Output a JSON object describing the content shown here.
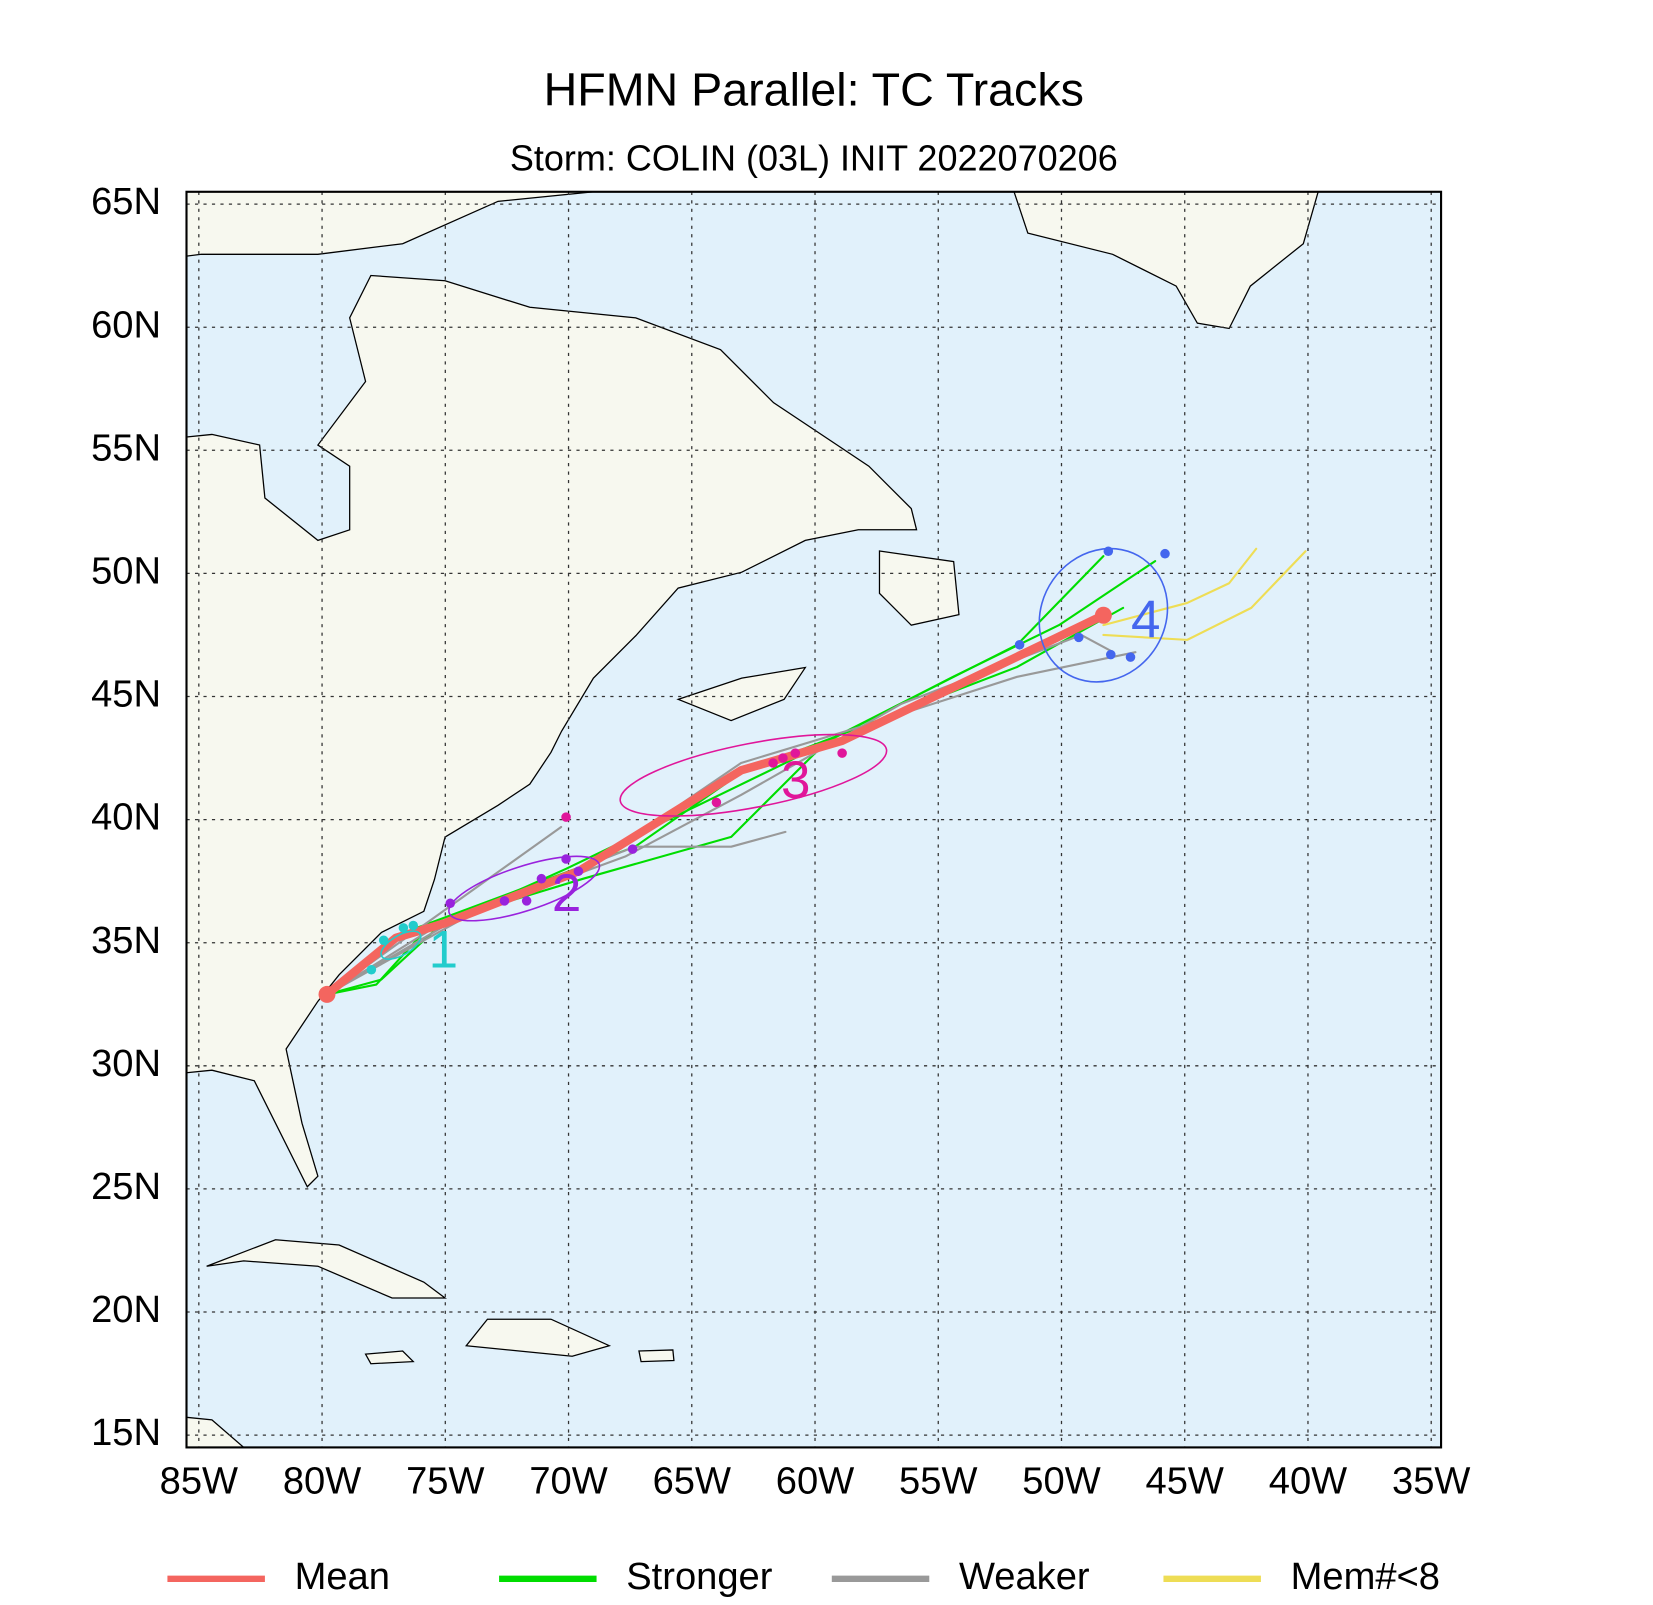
{
  "chart_data": {
    "type": "map",
    "title": "HFMN Parallel: TC Tracks",
    "subtitle": "Storm: COLIN (03L) INIT 2022070206",
    "xlim": [
      -85.5,
      -34.6
    ],
    "ylim": [
      14.5,
      65.5
    ],
    "xticks": [
      {
        "value": -85,
        "label": "85W"
      },
      {
        "value": -80,
        "label": "80W"
      },
      {
        "value": -75,
        "label": "75W"
      },
      {
        "value": -70,
        "label": "70W"
      },
      {
        "value": -65,
        "label": "65W"
      },
      {
        "value": -60,
        "label": "60W"
      },
      {
        "value": -55,
        "label": "55W"
      },
      {
        "value": -50,
        "label": "50W"
      },
      {
        "value": -45,
        "label": "45W"
      },
      {
        "value": -40,
        "label": "40W"
      },
      {
        "value": -35,
        "label": "35W"
      }
    ],
    "yticks": [
      {
        "value": 15,
        "label": "15N"
      },
      {
        "value": 20,
        "label": "20N"
      },
      {
        "value": 25,
        "label": "25N"
      },
      {
        "value": 30,
        "label": "30N"
      },
      {
        "value": 35,
        "label": "35N"
      },
      {
        "value": 40,
        "label": "40N"
      },
      {
        "value": 45,
        "label": "45N"
      },
      {
        "value": 50,
        "label": "50N"
      },
      {
        "value": 55,
        "label": "55N"
      },
      {
        "value": 60,
        "label": "60N"
      },
      {
        "value": 65,
        "label": "65N"
      }
    ],
    "grid": true,
    "series": [
      {
        "name": "Stronger",
        "color": "#00dd00",
        "tracks": [
          {
            "lon": [
              -79.8,
              -77.8,
              -75.9,
              -70.1,
              -64.7,
              -61.2,
              -54.4,
              -50.1,
              -46.2
            ],
            "lat": [
              32.9,
              33.3,
              35.4,
              38.0,
              40.6,
              42.3,
              45.8,
              47.9,
              50.5
            ]
          },
          {
            "lon": [
              -79.8,
              -77.6,
              -75.0,
              -69.4,
              -63.4,
              -59.5,
              -51.8,
              -48.3
            ],
            "lat": [
              32.9,
              33.5,
              35.9,
              37.6,
              39.3,
              43.2,
              47.1,
              50.7
            ]
          },
          {
            "lon": [
              -79.8,
              -76.7,
              -67.3,
              -63.0,
              -51.8,
              -47.5
            ],
            "lat": [
              32.9,
              35.4,
              38.9,
              41.9,
              46.2,
              48.6
            ]
          }
        ]
      },
      {
        "name": "Weaker",
        "color": "#999999",
        "tracks": [
          {
            "lon": [
              -79.8,
              -75.9,
              -70.3
            ],
            "lat": [
              32.9,
              35.7,
              39.7
            ]
          },
          {
            "lon": [
              -79.8,
              -75.0,
              -67.3,
              -63.4,
              -61.2
            ],
            "lat": [
              32.9,
              35.9,
              38.9,
              38.9,
              39.5
            ]
          },
          {
            "lon": [
              -79.8,
              -75.0,
              -69.0,
              -63.0,
              -57.4,
              -51.8,
              -47.0
            ],
            "lat": [
              32.9,
              35.7,
              38.2,
              42.3,
              44.0,
              45.8,
              46.8
            ]
          },
          {
            "lon": [
              -79.8,
              -73.7,
              -67.7,
              -63.0,
              -56.5,
              -49.2,
              -47.9
            ],
            "lat": [
              32.9,
              36.3,
              38.5,
              41.0,
              44.7,
              47.5,
              46.8
            ]
          }
        ]
      },
      {
        "name": "Mem#<8",
        "color": "#eedd55",
        "tracks": [
          {
            "lon": [
              -48.3,
              -44.9,
              -43.2,
              -42.1
            ],
            "lat": [
              47.9,
              48.8,
              49.6,
              51.0
            ]
          },
          {
            "lon": [
              -48.3,
              -44.9,
              -42.3,
              -40.1
            ],
            "lat": [
              47.5,
              47.3,
              48.6,
              50.9
            ]
          }
        ]
      },
      {
        "name": "Mean",
        "color": "#f4655f",
        "tracks": [
          {
            "lon": [
              -79.8,
              -77.0,
              -75.0,
              -69.6,
              -63.0,
              -58.9,
              -48.3
            ],
            "lat": [
              32.9,
              35.2,
              35.8,
              37.9,
              42.0,
              43.2,
              48.3
            ]
          }
        ]
      }
    ],
    "forecast_days": [
      {
        "label": "1",
        "color": "#22cccc",
        "center": [
          -76.8,
          34.9
        ],
        "radii": [
          0.9,
          0.4
        ],
        "angle": -30,
        "points": {
          "lon": [
            -78.0,
            -77.5,
            -76.7,
            -76.3
          ],
          "lat": [
            33.9,
            35.1,
            35.6,
            35.7
          ]
        }
      },
      {
        "label": "2",
        "color": "#9922dd",
        "center": [
          -71.8,
          37.2
        ],
        "radii": [
          3.2,
          0.9
        ],
        "angle": -18,
        "points": {
          "lon": [
            -74.8,
            -72.6,
            -71.7,
            -71.1,
            -70.1,
            -69.6,
            -67.4
          ],
          "lat": [
            36.6,
            36.7,
            36.7,
            37.6,
            38.4,
            37.9,
            38.8
          ]
        }
      },
      {
        "label": "3",
        "color": "#e0169a",
        "center": [
          -62.5,
          41.8
        ],
        "radii": [
          5.5,
          1.3
        ],
        "angle": -11,
        "points": {
          "lon": [
            -70.1,
            -64.0,
            -61.7,
            -61.3,
            -60.8,
            -58.9
          ],
          "lat": [
            40.1,
            40.7,
            42.3,
            42.5,
            42.7,
            42.7
          ]
        }
      },
      {
        "label": "4",
        "color": "#4466ee",
        "center": [
          -48.3,
          48.3
        ],
        "radii": [
          2.8,
          2.5
        ],
        "angle": -55,
        "points": {
          "lon": [
            -48.1,
            -45.8,
            -51.7,
            -49.3,
            -48.0,
            -47.2
          ],
          "lat": [
            50.9,
            50.8,
            47.1,
            47.4,
            46.7,
            46.6
          ]
        }
      }
    ]
  }
}
